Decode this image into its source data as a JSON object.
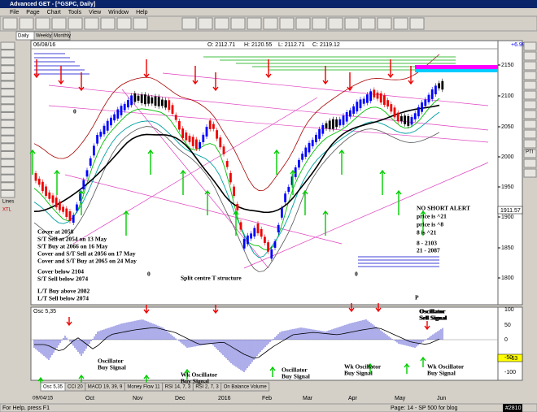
{
  "window": {
    "title": "Advanced GET - [^GSPC, Daily]",
    "menu": [
      "File",
      "Page",
      "Chart",
      "Tools",
      "View",
      "Window",
      "Help"
    ]
  },
  "timeframe_tabs": [
    "Daily",
    "Weekly",
    "Monthly"
  ],
  "sidebar": [
    "Lines",
    "XTL"
  ],
  "right_toolbar": [
    "PTI"
  ],
  "chart_header": {
    "date": "06/08/16",
    "open": "O: 2112.71",
    "high": "H: 2120.55",
    "low": "L: 2112.71",
    "close": "C: 2119.12",
    "change": "+6.99"
  },
  "price_axis": [
    "2150",
    "2100",
    "2050",
    "2000",
    "1950",
    "1900",
    "1850",
    "1800"
  ],
  "price_marker": "1911.57",
  "annotations": [
    "Cover at 2058",
    "S/T Sell at 2054 on 13 May",
    "S/T Buy at 2066 on 16 May",
    "Cover and S/T Sell at 2056 on 17 May",
    "Cover and S/T Buy at 2065 on 24 May",
    "Cover below 2104",
    "S/T Sell below 2074",
    "L/T Buy above 2082",
    "L/T Sell below 2074",
    "Split centre T structure",
    "NO SHORT ALERT",
    "price is ^21",
    "price is ^8",
    "8 is ^21",
    "8   - 2103",
    "21 - 2087",
    "0",
    "0",
    "0",
    "P"
  ],
  "oscillator": {
    "title": "Osc 5,35",
    "axis": [
      "100",
      "50",
      "0",
      "-50",
      "-100"
    ],
    "marker": "-63",
    "annotations": [
      [
        "Oscillator",
        "Sell Signal"
      ],
      [
        "Oscillator",
        "Buy Signal"
      ],
      [
        "Wk Oscillator",
        "Buy Signal"
      ],
      [
        "Oscillator",
        "Buy Signal"
      ],
      [
        "Wk Oscillator",
        "Buy Signal"
      ],
      [
        "Oscillator",
        "Sell Signal"
      ],
      [
        "Wk Oscillator",
        "Buy Signal"
      ]
    ]
  },
  "indicator_tabs": [
    "Osc 5,35",
    "CCI 20",
    "MACD 19, 39, 9",
    "Money Flow 11",
    "RSI 14, 7, 3",
    "RSI 2, 7, 3",
    "On Balance Volume"
  ],
  "date_axis": [
    "09/04/15",
    "Oct",
    "Nov",
    "Dec",
    "2016",
    "Feb",
    "Mar",
    "Apr",
    "May",
    "Jun"
  ],
  "status": {
    "help": "For Help, press F1",
    "page": "Page: 14 - SP 500 for blog",
    "id": "#2810"
  }
}
